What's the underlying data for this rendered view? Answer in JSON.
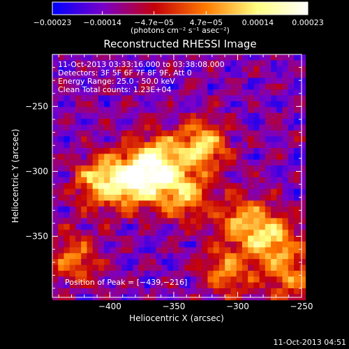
{
  "chart_data": {
    "type": "heatmap",
    "title": "Reconstructed RHESSI Image",
    "xlabel": "Heliocentric X (arcsec)",
    "ylabel": "Heliocentric Y (arcsec)",
    "xlim": [
      -445,
      -250
    ],
    "ylim": [
      -397,
      -210
    ],
    "x_ticks": [
      -400,
      -350,
      -300,
      -250
    ],
    "y_ticks": [
      -250,
      -300,
      -350
    ],
    "x_tick_labels": [
      "−400",
      "−350",
      "−300",
      "−250"
    ],
    "y_tick_labels": [
      "−250",
      "−300",
      "−350"
    ],
    "colorbar": {
      "vmin": -0.00023,
      "vmax": 0.00023,
      "ticks": [
        -0.00023,
        -0.00014,
        -4.7e-05,
        4.7e-05,
        0.00014,
        0.00023
      ],
      "tick_labels": [
        "−0.00023",
        "−0.00014",
        "−4.7e−05",
        "4.7e−05",
        "0.00014",
        "0.00023"
      ],
      "unit_label": "(photons cm⁻² s⁻¹ asec⁻²)",
      "colors": [
        "#0000ff",
        "#7a00c8",
        "#c4000a",
        "#ff7a00",
        "#ffff80",
        "#ffffff"
      ]
    },
    "annotations": [
      "11-Oct-2013 03:33:16.000  to 03:38:08.000",
      "Detectors: 3F 5F 6F 7F 8F 9F, Att 0",
      "Energy Range: 25.0 - 50.0 keV",
      "Clean     Total counts: 1.23E+04"
    ],
    "peak_label": "Position of Peak = [−439,−216]",
    "peak": {
      "x": -439,
      "y": -216
    },
    "sources": [
      {
        "x": -382,
        "y": -305,
        "amp": 1.0
      },
      {
        "x": -365,
        "y": -290,
        "amp": 0.9
      },
      {
        "x": -330,
        "y": -278,
        "amp": 0.85
      },
      {
        "x": -410,
        "y": -305,
        "amp": 0.8
      },
      {
        "x": -345,
        "y": -315,
        "amp": 0.75
      },
      {
        "x": -275,
        "y": -350,
        "amp": 0.8
      },
      {
        "x": -300,
        "y": -335,
        "amp": 0.65
      },
      {
        "x": -430,
        "y": -365,
        "amp": 0.55
      },
      {
        "x": -310,
        "y": -375,
        "amp": 0.6
      },
      {
        "x": -260,
        "y": -380,
        "amp": 0.55
      }
    ]
  },
  "footer": {
    "timestamp": "11-Oct-2013 04:51"
  }
}
